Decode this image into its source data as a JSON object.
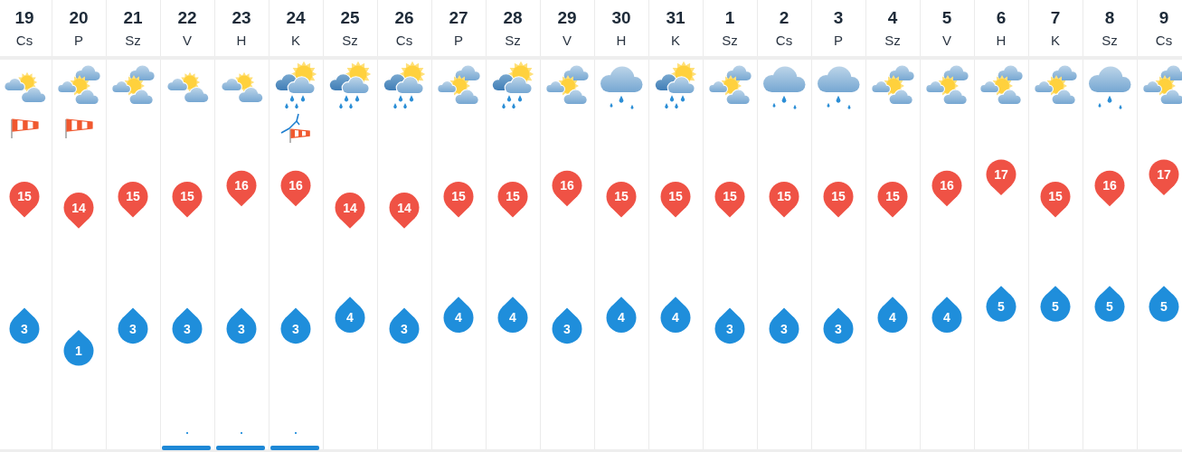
{
  "chart_data": {
    "type": "scatter",
    "categories": [
      "19\nCs",
      "20\nP",
      "21\nSz",
      "22\nV",
      "23\nH",
      "24\nK",
      "25\nSz",
      "26\nCs",
      "27\nP",
      "28\nSz",
      "29\nV",
      "30\nH",
      "31\nK",
      "1\nSz",
      "2\nCs",
      "3\nP",
      "4\nSz",
      "5\nV",
      "6\nH",
      "7\nK",
      "8\nSz",
      "9\nCs"
    ],
    "series": [
      {
        "color": "#ef5245",
        "values": [
          15,
          14,
          15,
          15,
          16,
          16,
          14,
          14,
          15,
          15,
          16,
          15,
          15,
          15,
          15,
          15,
          15,
          16,
          17,
          15,
          16,
          17
        ]
      },
      {
        "color": "#1f8edb",
        "values": [
          3,
          1,
          3,
          3,
          3,
          3,
          4,
          3,
          4,
          4,
          3,
          4,
          4,
          3,
          3,
          3,
          4,
          4,
          5,
          5,
          5,
          5
        ]
      }
    ],
    "data_labels": true,
    "grid": "x"
  }
}
